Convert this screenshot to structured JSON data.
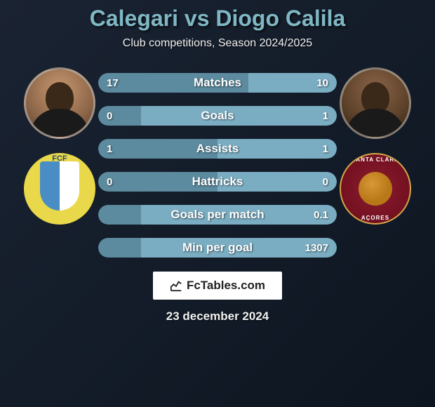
{
  "title": "Calegari vs Diogo Calila",
  "subtitle": "Club competitions, Season 2024/2025",
  "player_left": {
    "name": "Calegari",
    "avatar_skin": "#c89870",
    "club_name": "FCF",
    "club_colors": [
      "#4a8dc4",
      "#ffffff",
      "#e8d84a"
    ]
  },
  "player_right": {
    "name": "Diogo Calila",
    "avatar_skin": "#8b6548",
    "club_name": "Santa Clara Açores",
    "club_colors": [
      "#8a1c2c",
      "#d4a848"
    ]
  },
  "stats": [
    {
      "label": "Matches",
      "left_val": "17",
      "right_val": "10",
      "left_pct": 63,
      "right_pct": 37
    },
    {
      "label": "Goals",
      "left_val": "0",
      "right_val": "1",
      "left_pct": 18,
      "right_pct": 82
    },
    {
      "label": "Assists",
      "left_val": "1",
      "right_val": "1",
      "left_pct": 50,
      "right_pct": 50
    },
    {
      "label": "Hattricks",
      "left_val": "0",
      "right_val": "0",
      "left_pct": 50,
      "right_pct": 50
    },
    {
      "label": "Goals per match",
      "left_val": "",
      "right_val": "0.1",
      "left_pct": 18,
      "right_pct": 82
    },
    {
      "label": "Min per goal",
      "left_val": "",
      "right_val": "1307",
      "left_pct": 18,
      "right_pct": 82
    }
  ],
  "colors": {
    "bar_left": "#5c8a9e",
    "bar_right": "#7aadc2",
    "bar_bg": "#2a3848",
    "title_color": "#7fb8c4",
    "text_color": "#f0f0f0",
    "background": "linear-gradient(135deg, #1a2332 0%, #0d1520 100%)"
  },
  "footer": {
    "brand": "FcTables.com",
    "date": "23 december 2024"
  }
}
